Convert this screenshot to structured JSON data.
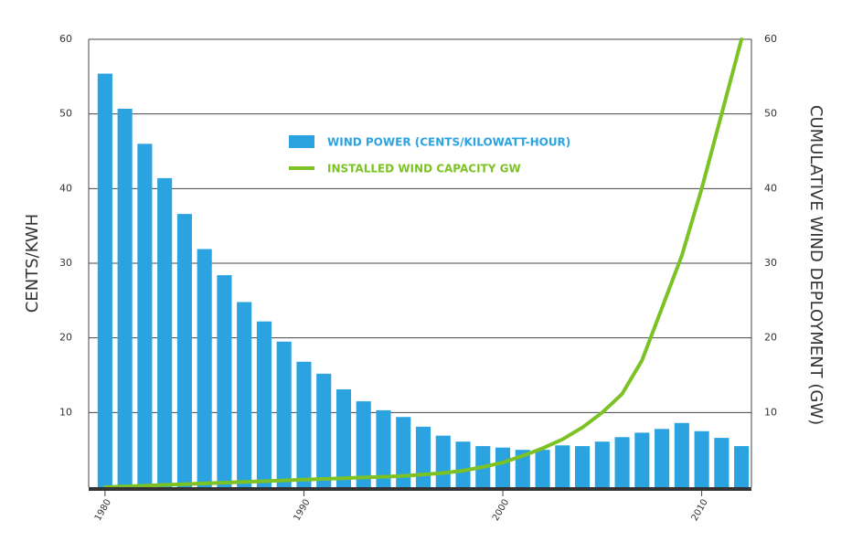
{
  "chart_data": {
    "type": "bar",
    "ylabel": "CENTS/KWH",
    "y2label": "CUMULATIVE WIND DEPLOYMENT (GW)",
    "categories": [
      "1980",
      null,
      null,
      null,
      null,
      null,
      null,
      null,
      null,
      null,
      "1990",
      null,
      null,
      null,
      null,
      null,
      null,
      null,
      null,
      null,
      "2000",
      null,
      null,
      null,
      null,
      null,
      null,
      null,
      null,
      null,
      "2010",
      null,
      null
    ],
    "series": [
      {
        "name": "WIND POWER (CENTS/KILOWATT-HOUR)",
        "color": "#2ba3e0",
        "type": "bar",
        "values": [
          55.4,
          50.7,
          46,
          41.4,
          36.6,
          31.9,
          28.4,
          24.8,
          22.2,
          19.5,
          16.8,
          15.2,
          13.1,
          11.5,
          10.3,
          9.4,
          8.1,
          6.9,
          6.1,
          5.5,
          5.3,
          5.0,
          5.0,
          5.6,
          5.5,
          6.1,
          6.7,
          7.3,
          7.8,
          8.6,
          7.5,
          6.6,
          5.5
        ]
      },
      {
        "name": "INSTALLED WIND CAPACITY GW",
        "color": "#7dc225",
        "type": "line",
        "axis": "y2",
        "values": [
          0,
          0.1,
          0.2,
          0.3,
          0.4,
          0.5,
          0.6,
          0.7,
          0.8,
          0.9,
          1.0,
          1.1,
          1.2,
          1.3,
          1.4,
          1.5,
          1.7,
          1.9,
          2.2,
          2.7,
          3.3,
          4.2,
          5.2,
          6.4,
          8,
          10,
          12.5,
          17,
          24,
          31,
          40,
          50,
          60
        ]
      }
    ],
    "ylim": [
      0,
      60
    ],
    "yticks": [
      10,
      20,
      30,
      40,
      50,
      60
    ],
    "y2lim": [
      0,
      60
    ],
    "y2ticks": [
      10,
      20,
      30,
      40,
      50,
      60
    ],
    "grid": true
  }
}
